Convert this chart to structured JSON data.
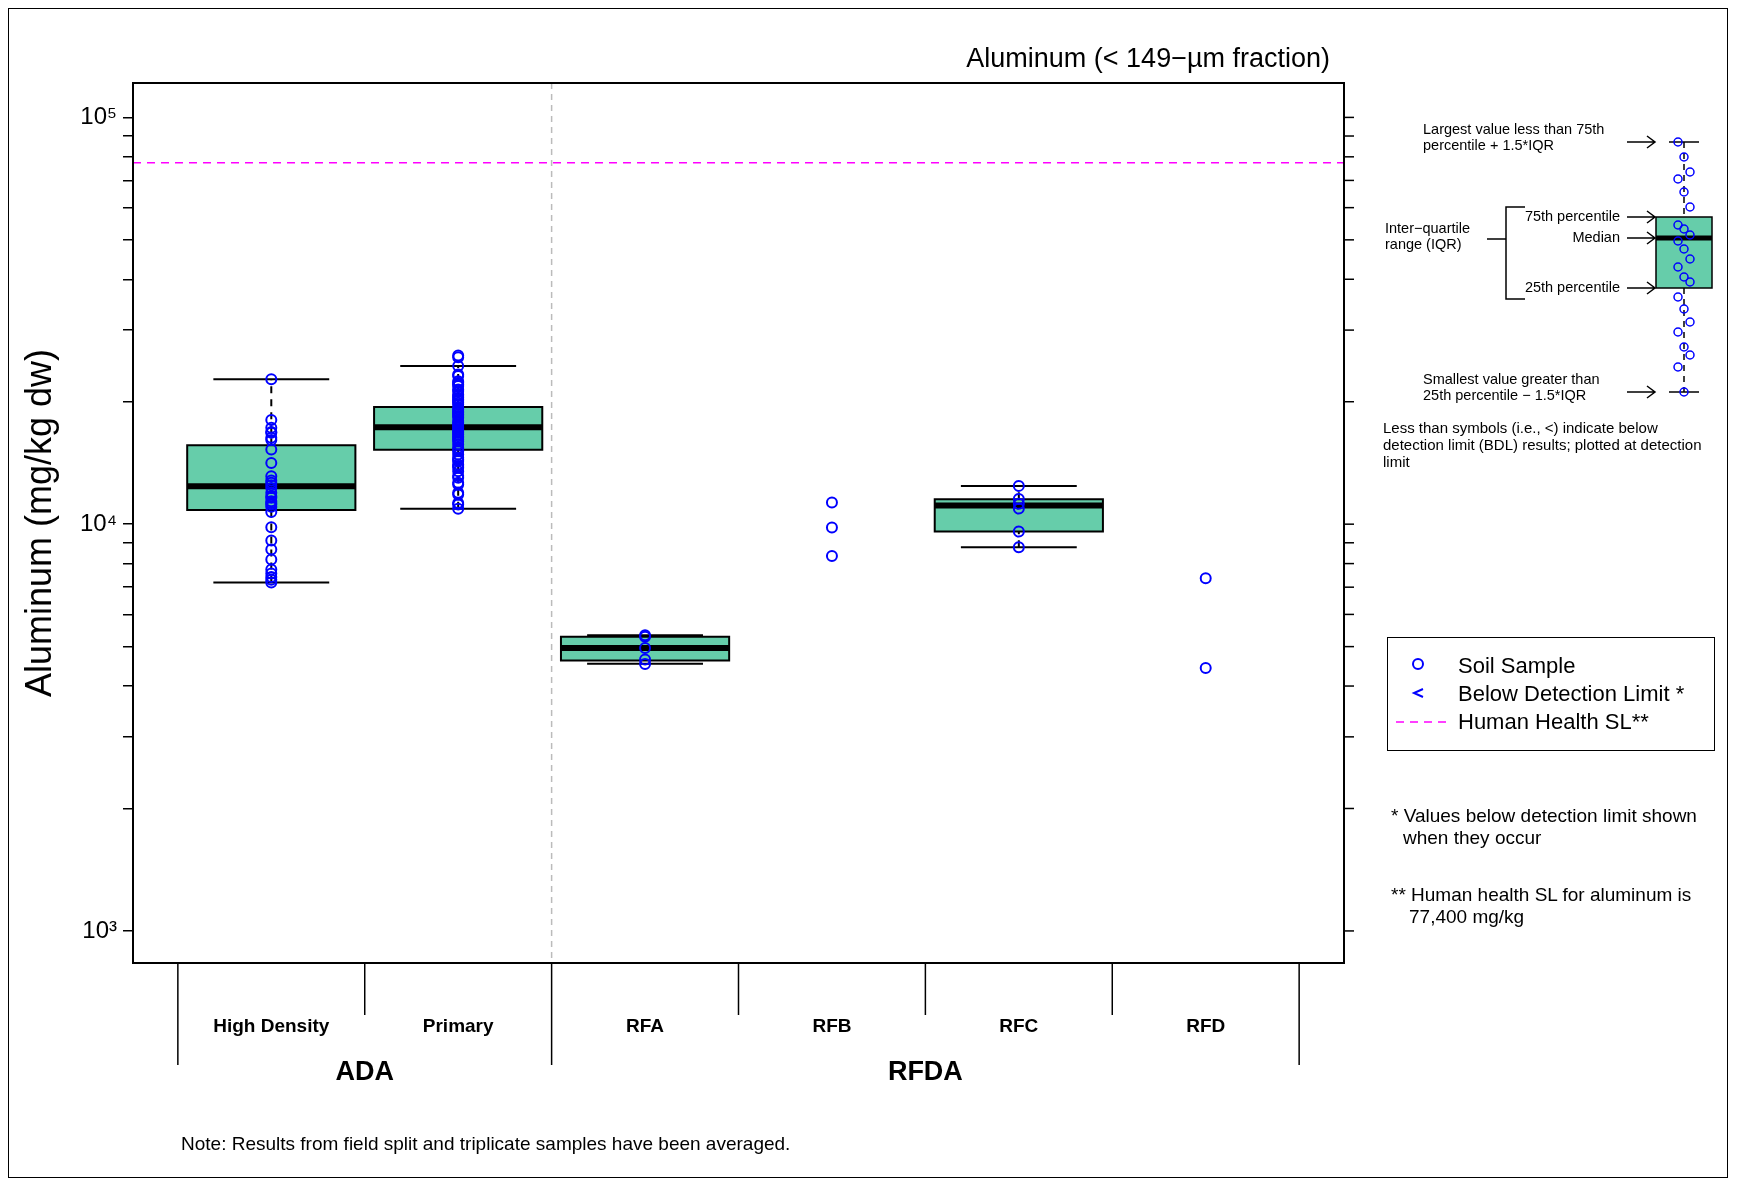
{
  "chart_data": {
    "type": "box",
    "title": "Aluminum (< 149−µm fraction)",
    "ylabel": "Aluminum (mg/kg dw)",
    "categories": [
      "High Density",
      "Primary",
      "RFA",
      "RFB",
      "RFC",
      "RFD"
    ],
    "color": "#66cdaa",
    "boxes": [
      {
        "low": 7190,
        "q1": 10840,
        "median": 12400,
        "q3": 15640,
        "high": 22700
      },
      {
        "low": 10910,
        "q1": 15230,
        "median": 17320,
        "q3": 19400,
        "high": 24470
      },
      {
        "low": 4540,
        "q1": 4620,
        "median": 4960,
        "q3": 5290,
        "high": 5330
      },
      null,
      {
        "low": 8780,
        "q1": 9590,
        "median": 11110,
        "q3": 11510,
        "high": 12420
      },
      null
    ],
    "series": [
      {
        "name": "Soil Sample",
        "type": "scatter",
        "color": "#0000ff",
        "marker": "circle",
        "x": [
          "High Density",
          "High Density",
          "High Density",
          "High Density",
          "High Density",
          "High Density",
          "High Density",
          "High Density",
          "High Density",
          "High Density",
          "High Density",
          "High Density",
          "High Density",
          "High Density",
          "High Density",
          "High Density",
          "High Density",
          "High Density",
          "High Density",
          "High Density",
          "High Density",
          "High Density",
          "High Density",
          "High Density",
          "High Density",
          "High Density",
          "High Density",
          "High Density",
          "High Density",
          "High Density",
          "High Density",
          "Primary",
          "Primary",
          "Primary",
          "Primary",
          "Primary",
          "Primary",
          "Primary",
          "Primary",
          "Primary",
          "Primary",
          "Primary",
          "Primary",
          "Primary",
          "Primary",
          "Primary",
          "Primary",
          "Primary",
          "Primary",
          "Primary",
          "Primary",
          "Primary",
          "Primary",
          "Primary",
          "Primary",
          "Primary",
          "Primary",
          "Primary",
          "Primary",
          "Primary",
          "Primary",
          "Primary",
          "Primary",
          "Primary",
          "Primary",
          "Primary",
          "Primary",
          "Primary",
          "Primary",
          "Primary",
          "Primary",
          "Primary",
          "Primary",
          "Primary",
          "Primary",
          "Primary",
          "Primary",
          "Primary",
          "Primary",
          "Primary",
          "Primary",
          "Primary",
          "Primary",
          "Primary",
          "Primary",
          "Primary",
          "Primary",
          "Primary",
          "Primary",
          "Primary",
          "RFA",
          "RFA",
          "RFA",
          "RFA",
          "RFA",
          "RFB",
          "RFB",
          "RFB",
          "RFC",
          "RFC",
          "RFC",
          "RFC",
          "RFC",
          "RFC",
          "RFD",
          "RFD"
        ],
        "values": [
          22700,
          18030,
          17250,
          16860,
          16770,
          16300,
          16110,
          15270,
          14130,
          13120,
          12810,
          12640,
          12470,
          12280,
          11940,
          11720,
          11610,
          11390,
          11280,
          11180,
          11030,
          10720,
          9830,
          9120,
          8660,
          8190,
          7740,
          7560,
          7410,
          7190,
          7300,
          25990,
          25740,
          24470,
          23340,
          23120,
          22470,
          22260,
          22050,
          21850,
          21440,
          21240,
          20840,
          20650,
          20450,
          20260,
          20070,
          19880,
          19700,
          19320,
          19140,
          18960,
          18790,
          18610,
          18440,
          18260,
          17920,
          17750,
          17580,
          17420,
          17260,
          17090,
          16930,
          16780,
          16620,
          16460,
          16310,
          16160,
          16000,
          15700,
          15410,
          15260,
          15120,
          14840,
          14560,
          14420,
          14290,
          14020,
          13890,
          13760,
          13500,
          13130,
          13000,
          12640,
          12520,
          11940,
          11830,
          11280,
          11180,
          10910,
          5290,
          5330,
          4960,
          4650,
          4530,
          11310,
          9810,
          8350,
          12420,
          11530,
          11220,
          10920,
          9590,
          8780,
          7360,
          4430
        ]
      },
      {
        "name": "Below Detection Limit *",
        "type": "scatter",
        "color": "#0000ff",
        "values": [
          null,
          null,
          null,
          null,
          null,
          null
        ]
      }
    ],
    "ref_lines": [
      {
        "axis": "y",
        "value": 77400,
        "label": "Human Health SL**",
        "color": "#ff00ff",
        "line_style": "dashed"
      }
    ],
    "log": true,
    "grid": false,
    "legend": "right",
    "ylim": [
      834,
      121500
    ],
    "yticks": [
      {
        "value": 1000,
        "label": "10³"
      },
      {
        "value": 2000,
        "label": null
      },
      {
        "value": 3000,
        "label": null
      },
      {
        "value": 4000,
        "label": null
      },
      {
        "value": 5000,
        "label": null
      },
      {
        "value": 6000,
        "label": null
      },
      {
        "value": 7000,
        "label": null
      },
      {
        "value": 8000,
        "label": null
      },
      {
        "value": 9000,
        "label": null
      },
      {
        "value": 10000,
        "label": "10⁴"
      },
      {
        "value": 20000,
        "label": null
      },
      {
        "value": 30000,
        "label": null
      },
      {
        "value": 40000,
        "label": null
      },
      {
        "value": 50000,
        "label": null
      },
      {
        "value": 60000,
        "label": null
      },
      {
        "value": 70000,
        "label": null
      },
      {
        "value": 80000,
        "label": null
      },
      {
        "value": 90000,
        "label": null
      },
      {
        "value": 100000,
        "label": "10⁵"
      }
    ],
    "annotations": [
      "ADA",
      "RFDA",
      "Note: Results from field split and triplicate samples have been averaged.",
      "* Values below detection limit shown when they occur",
      "** Human health SL for aluminum is 77,400 mg/kg",
      "Less than symbols (i.e., <) indicate below detection limit (BDL) results; plotted at detection limit",
      "Largest value less than 75th percentile + 1.5*IQR",
      "Inter−quartile range (IQR)",
      "75th percentile",
      "Median",
      "25th percentile",
      "Smallest value greater than 25th percentile − 1.5*IQR"
    ]
  }
}
